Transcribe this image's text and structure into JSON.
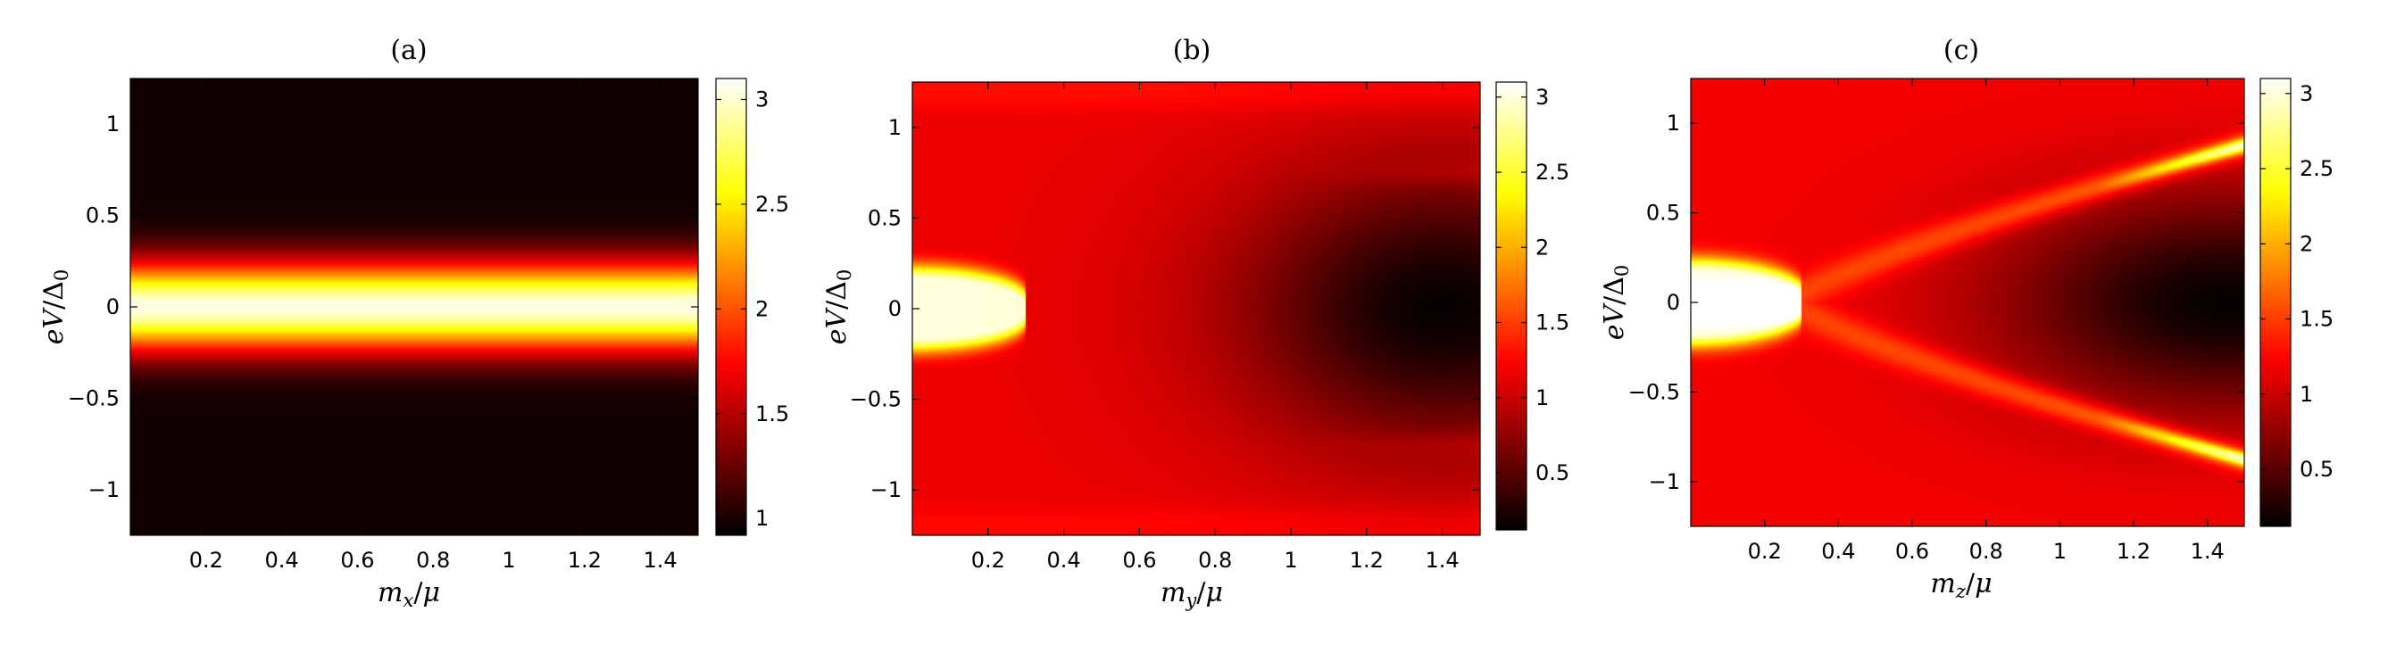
{
  "chart_data": [
    {
      "type": "heatmap",
      "title": "(a)",
      "xlabel": "m_x/μ",
      "ylabel": "eV/Δ_0",
      "xlim": [
        0,
        1.5
      ],
      "ylim": [
        -1.25,
        1.25
      ],
      "xticks": [
        "0.2",
        "0.4",
        "0.6",
        "0.8",
        "1",
        "1.2",
        "1.4"
      ],
      "xtick_values": [
        0.2,
        0.4,
        0.6,
        0.8,
        1,
        1.2,
        1.4
      ],
      "yticks": [
        "−1",
        "−0.5",
        "0",
        "0.5",
        "1"
      ],
      "ytick_values": [
        -1,
        -0.5,
        0,
        0.5,
        1
      ],
      "colormap": "hot",
      "colorbar": {
        "range": [
          0.92,
          3.1
        ],
        "ticks": [
          "1",
          "1.5",
          "2",
          "2.5",
          "3"
        ],
        "tick_values": [
          1,
          1.5,
          2,
          2.5,
          3
        ]
      },
      "description_of_field": {
        "model": "zero_bias_peak_constant",
        "peak_value": 3.05,
        "background": 0.97,
        "peak_width": 0.17
      }
    },
    {
      "type": "heatmap",
      "title": "(b)",
      "xlabel": "m_y/μ",
      "ylabel": "eV/Δ_0",
      "xlim": [
        0,
        1.5
      ],
      "ylim": [
        -1.25,
        1.25
      ],
      "xticks": [
        "0.2",
        "0.4",
        "0.6",
        "0.8",
        "1",
        "1.2",
        "1.4"
      ],
      "xtick_values": [
        0.2,
        0.4,
        0.6,
        0.8,
        1,
        1.2,
        1.4
      ],
      "yticks": [
        "−1",
        "−0.5",
        "0",
        "0.5",
        "1"
      ],
      "ytick_values": [
        -1,
        -0.5,
        0,
        0.5,
        1
      ],
      "colormap": "hot",
      "colorbar": {
        "range": [
          0.12,
          3.1
        ],
        "ticks": [
          "0.5",
          "1",
          "1.5",
          "2",
          "2.5",
          "3"
        ],
        "tick_values": [
          0.5,
          1,
          1.5,
          2,
          2.5,
          3
        ]
      },
      "description_of_field": {
        "model": "zero_bias_peak_decaying",
        "peak_value": 3.0,
        "peak_extent": 0.3,
        "background": 1.15,
        "dip_center": 1.4,
        "dip_min": 0.15
      }
    },
    {
      "type": "heatmap",
      "title": "(c)",
      "xlabel": "m_z/μ",
      "ylabel": "eV/Δ_0",
      "xlim": [
        0,
        1.5
      ],
      "ylim": [
        -1.25,
        1.25
      ],
      "xticks": [
        "0.2",
        "0.4",
        "0.6",
        "0.8",
        "1",
        "1.2",
        "1.4"
      ],
      "xtick_values": [
        0.2,
        0.4,
        0.6,
        0.8,
        1,
        1.2,
        1.4
      ],
      "yticks": [
        "−1",
        "−0.5",
        "0",
        "0.5",
        "1"
      ],
      "ytick_values": [
        -1,
        -0.5,
        0,
        0.5,
        1
      ],
      "colormap": "hot",
      "colorbar": {
        "range": [
          0.12,
          3.1
        ],
        "ticks": [
          "0.5",
          "1",
          "1.5",
          "2",
          "2.5",
          "3"
        ],
        "tick_values": [
          0.5,
          1,
          1.5,
          2,
          2.5,
          3
        ]
      },
      "description_of_field": {
        "model": "zero_bias_peak_splitting",
        "peak_value": 3.0,
        "split_onset": 0.3,
        "split_at_1_4": 0.82,
        "ridge_value": 2.6,
        "background": 1.2,
        "dip_min": 0.15
      }
    }
  ]
}
